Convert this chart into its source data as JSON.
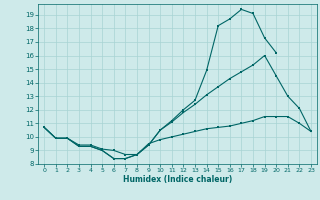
{
  "xlabel": "Humidex (Indice chaleur)",
  "bg_color": "#ceeaea",
  "grid_color": "#a8d4d4",
  "line_color": "#006666",
  "xlim": [
    -0.5,
    23.5
  ],
  "ylim": [
    8.0,
    19.8
  ],
  "yticks": [
    8,
    9,
    10,
    11,
    12,
    13,
    14,
    15,
    16,
    17,
    18,
    19
  ],
  "xticks": [
    0,
    1,
    2,
    3,
    4,
    5,
    6,
    7,
    8,
    9,
    10,
    11,
    12,
    13,
    14,
    15,
    16,
    17,
    18,
    19,
    20,
    21,
    22,
    23
  ],
  "line1_x": [
    0,
    1,
    2,
    3,
    4,
    5,
    6,
    7,
    8,
    9,
    10,
    11,
    12,
    13,
    14,
    15,
    16,
    17,
    18,
    19,
    20
  ],
  "line1_y": [
    10.7,
    9.9,
    9.9,
    9.3,
    9.3,
    9.0,
    8.4,
    8.4,
    8.7,
    9.4,
    10.5,
    11.2,
    12.0,
    12.7,
    14.9,
    18.2,
    18.7,
    19.4,
    19.1,
    17.3,
    16.2
  ],
  "line2_x": [
    0,
    1,
    2,
    3,
    4,
    5,
    6,
    7,
    8,
    9,
    10,
    11,
    12,
    13,
    14,
    15,
    16,
    17,
    18,
    19,
    20,
    21,
    22,
    23
  ],
  "line2_y": [
    10.7,
    9.9,
    9.9,
    9.3,
    9.3,
    9.0,
    8.4,
    8.4,
    8.7,
    9.4,
    10.5,
    11.1,
    11.8,
    12.4,
    13.1,
    13.7,
    14.3,
    14.8,
    15.3,
    16.0,
    14.5,
    13.0,
    12.1,
    10.4
  ],
  "line3_x": [
    0,
    1,
    2,
    3,
    4,
    5,
    6,
    7,
    8,
    9,
    10,
    11,
    12,
    13,
    14,
    15,
    16,
    17,
    18,
    19,
    20,
    21,
    22,
    23
  ],
  "line3_y": [
    10.7,
    9.9,
    9.9,
    9.4,
    9.4,
    9.1,
    9.0,
    8.7,
    8.7,
    9.5,
    9.8,
    10.0,
    10.2,
    10.4,
    10.6,
    10.7,
    10.8,
    11.0,
    11.2,
    11.5,
    11.5,
    11.5,
    11.0,
    10.4
  ]
}
